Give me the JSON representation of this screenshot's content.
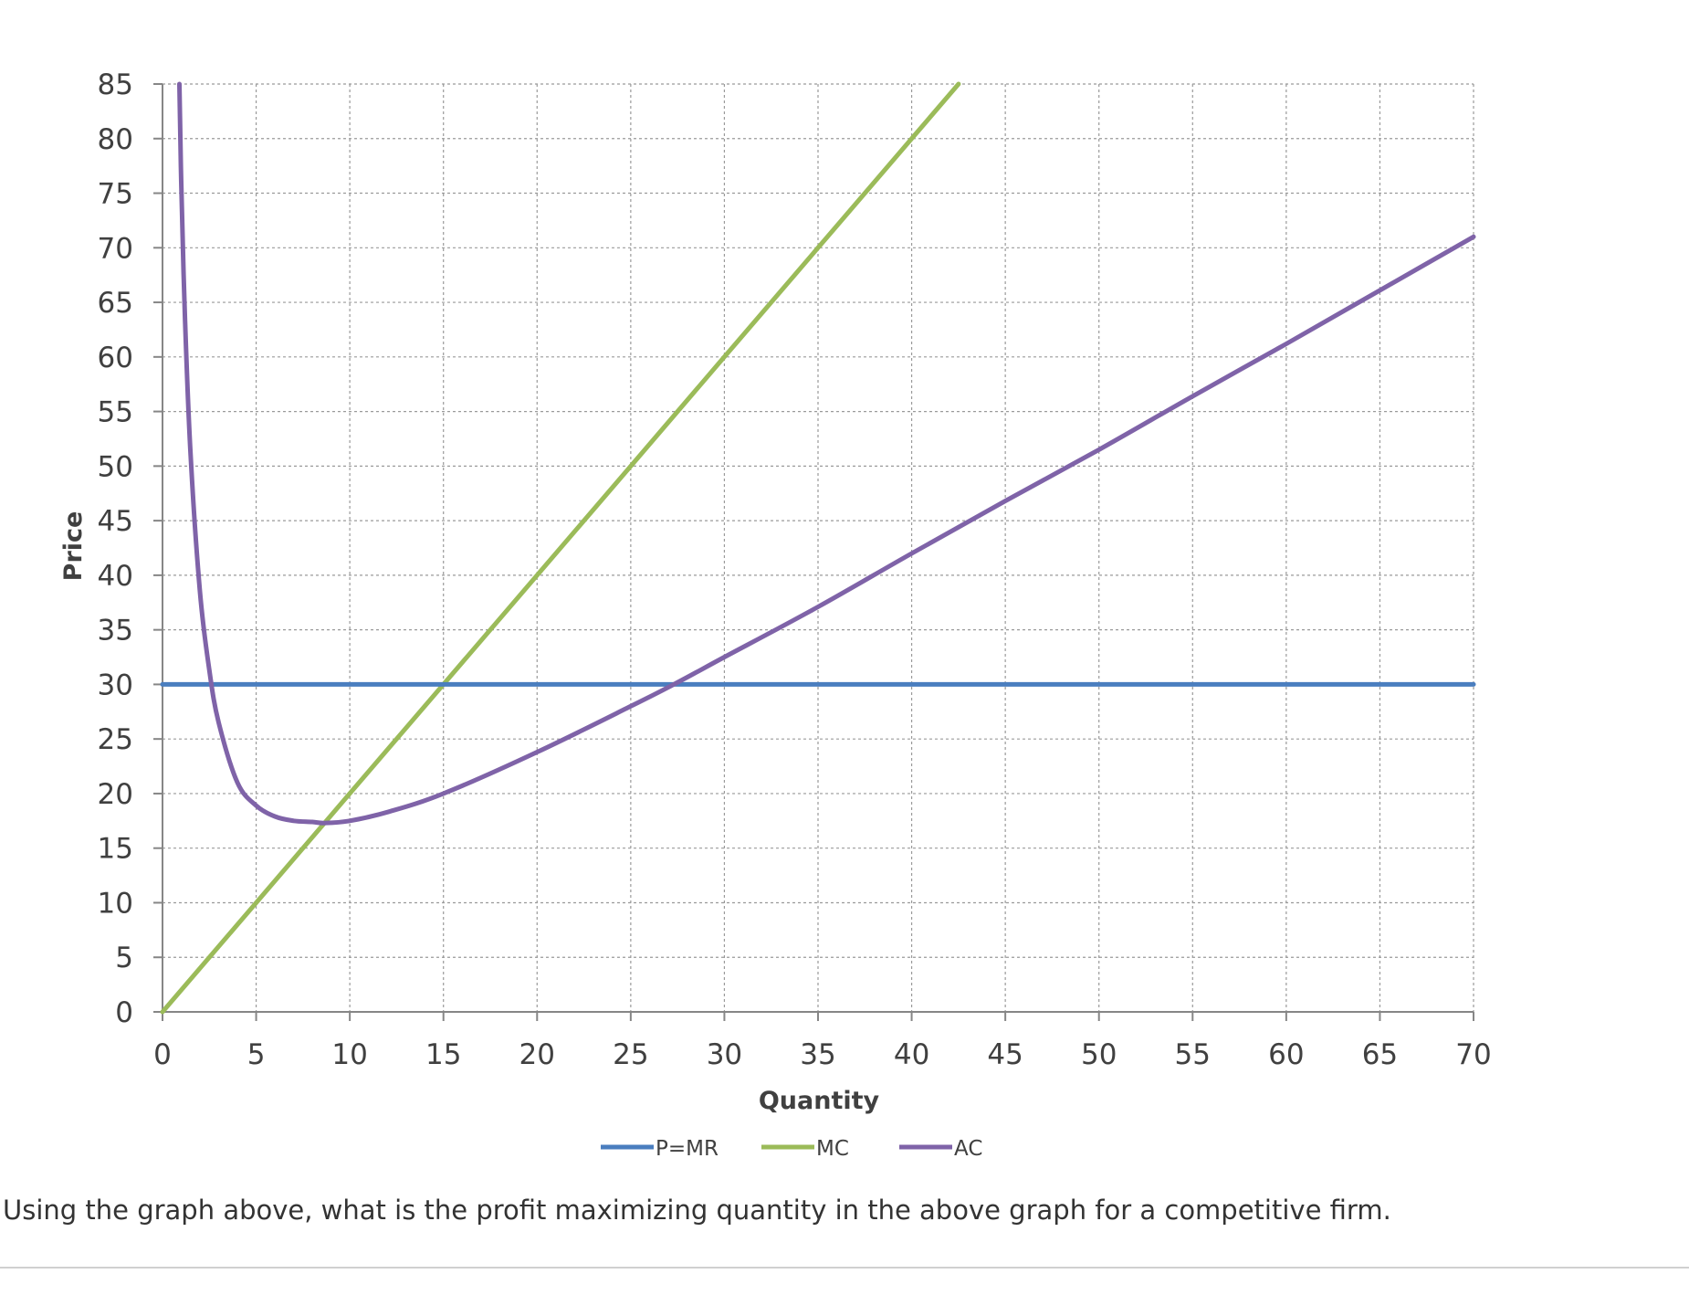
{
  "chart_data": {
    "type": "line",
    "title": "",
    "xlabel": "Quantity",
    "ylabel": "Price",
    "xlim": [
      0,
      70
    ],
    "ylim": [
      0,
      85
    ],
    "xticks": [
      0,
      5,
      10,
      15,
      20,
      25,
      30,
      35,
      40,
      45,
      50,
      55,
      60,
      65,
      70
    ],
    "yticks": [
      0,
      5,
      10,
      15,
      20,
      25,
      30,
      35,
      40,
      45,
      50,
      55,
      60,
      65,
      70,
      75,
      80,
      85
    ],
    "grid": true,
    "legend_position": "bottom",
    "series": [
      {
        "name": "P=MR",
        "color": "#4a7ebf",
        "x": [
          0,
          70
        ],
        "y": [
          30,
          30
        ]
      },
      {
        "name": "MC",
        "color": "#9bbb59",
        "x": [
          0,
          5,
          10,
          15,
          20,
          25,
          30,
          35,
          40,
          42.5
        ],
        "y": [
          0,
          10,
          20,
          30,
          40,
          50,
          60,
          70,
          80,
          85
        ]
      },
      {
        "name": "AC",
        "color": "#7f63a8",
        "x": [
          0.9,
          1,
          1.2,
          1.5,
          2,
          2.5,
          3,
          4,
          5,
          6,
          7,
          8,
          8.66,
          10,
          12,
          15,
          20,
          25,
          27.3,
          30,
          35,
          40,
          45,
          50,
          55,
          60,
          65,
          70
        ],
        "y": [
          85,
          76,
          63.6,
          51,
          38.5,
          31.3,
          26.5,
          21.0,
          18.9,
          17.9,
          17.5,
          17.4,
          17.3,
          17.5,
          18.3,
          20.0,
          23.8,
          28.0,
          30.0,
          32.5,
          37.1,
          42.0,
          46.8,
          51.5,
          56.4,
          61.2,
          66.1,
          71.0
        ]
      }
    ]
  },
  "question": "Using the graph above, what is the profit maximizing quantity in the above graph for a competitive firm."
}
